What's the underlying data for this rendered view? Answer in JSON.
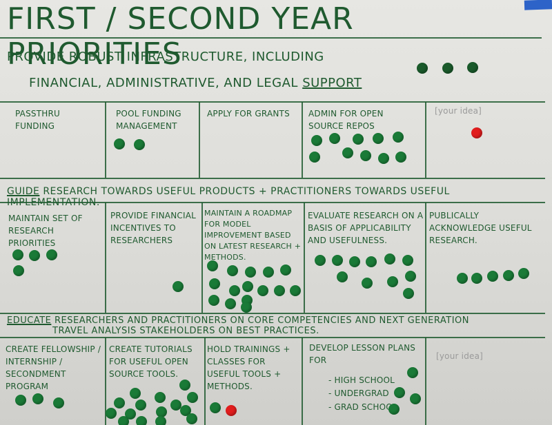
{
  "board": {
    "title": "First / Second Year Priorities"
  },
  "sections": [
    {
      "header_line1": "Provide robust infrastructure, including",
      "header_line2_prefix": "financial, administrative, and legal",
      "header_line2_underlined": "support",
      "cells": [
        {
          "text": "Passthru funding",
          "green_votes": 0,
          "red_votes": 0
        },
        {
          "text": "Pool funding management",
          "green_votes": 2,
          "red_votes": 0
        },
        {
          "text": "Apply for grants",
          "green_votes": 0,
          "red_votes": 0
        },
        {
          "text": "Admin for open source repos",
          "green_votes": 12,
          "red_votes": 0
        },
        {
          "text": "[your idea]",
          "green_votes": 0,
          "red_votes": 1
        }
      ],
      "header_votes": 3
    },
    {
      "header_underlined": "Guide",
      "header_rest": "research towards useful products + practitioners towards useful implementation.",
      "cells": [
        {
          "text": "Maintain set of research priorities",
          "green_votes": 4,
          "red_votes": 0
        },
        {
          "text": "Provide financial incentives to researchers",
          "green_votes": 1,
          "red_votes": 0
        },
        {
          "text": "Maintain a roadmap for model improvement based on latest research + methods.",
          "green_votes": 17,
          "red_votes": 0
        },
        {
          "text": "Evaluate research on a basis of applicability and usefulness.",
          "green_votes": 11,
          "red_votes": 0
        },
        {
          "text": "Publically acknowledge useful research.",
          "green_votes": 5,
          "red_votes": 0
        }
      ]
    },
    {
      "header_underlined": "Educate",
      "header_rest_line1": "researchers and practitioners on core competencies and next generation",
      "header_rest_line2": "travel analysis stakeholders on best practices.",
      "cells": [
        {
          "text": "Create fellowship / internship / secondment program",
          "green_votes": 3,
          "red_votes": 0
        },
        {
          "text": "Create tutorials for useful open source tools.",
          "green_votes": 15,
          "red_votes": 0
        },
        {
          "text": "Hold trainings + classes for useful tools + methods.",
          "green_votes": 1,
          "red_votes": 1
        },
        {
          "text": "Develop lesson plans for",
          "bullets": [
            "- High school",
            "- Undergrad",
            "- Grad school"
          ],
          "green_votes": 4,
          "red_votes": 0
        },
        {
          "text": "[your idea]",
          "green_votes": 0,
          "red_votes": 0
        }
      ]
    }
  ],
  "colors": {
    "marker_green": "#1f5a2f",
    "dot_green": "#1a7a37",
    "dot_red": "#e11d1d",
    "tape_blue": "#2d63c8",
    "board_white": "#e7e7e3"
  }
}
